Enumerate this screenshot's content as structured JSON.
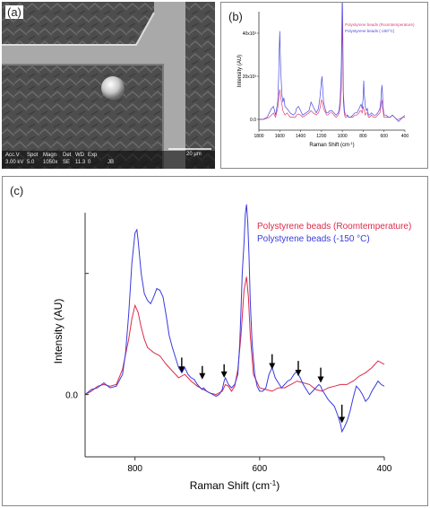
{
  "panel_a": {
    "label": "(a)",
    "sem": {
      "headers": [
        "Acc.V",
        "Spot",
        "Magn",
        "Det",
        "WD",
        "Exp"
      ],
      "values": [
        "3.00 kV",
        "5.0",
        "1050x",
        "SE",
        "11.3",
        "0"
      ],
      "scale_bar": "20 μm",
      "operator": "JB"
    }
  },
  "chart_data": [
    {
      "id": "b",
      "panel_label": "(b)",
      "type": "line",
      "xlabel_text": "Raman Shift (cm",
      "xlabel_sup": "-1",
      "xlabel_close": ")",
      "ylabel": "Intensity (AU)",
      "xlim": [
        1800,
        400
      ],
      "ylim": [
        -5,
        50
      ],
      "x_ticks": [
        1800,
        1600,
        1400,
        1200,
        1000,
        800,
        600,
        400
      ],
      "y_ticks": [
        "0.0",
        "20x10³",
        "40x10³"
      ],
      "legend": [
        "Polystyrene beads (Roomtemperature)",
        "Polystyrene beads (-150°C)"
      ],
      "legend_position": "top-right",
      "series": [
        {
          "name": "Polystyrene beads (Roomtemperature)",
          "color": "#e0407a",
          "x": [
            1800,
            1760,
            1720,
            1700,
            1680,
            1660,
            1640,
            1620,
            1605,
            1600,
            1590,
            1570,
            1550,
            1530,
            1500,
            1470,
            1450,
            1440,
            1420,
            1400,
            1380,
            1350,
            1320,
            1300,
            1280,
            1250,
            1230,
            1215,
            1200,
            1190,
            1180,
            1160,
            1150,
            1140,
            1120,
            1100,
            1080,
            1060,
            1040,
            1030,
            1020,
            1010,
            1003,
            1000,
            995,
            990,
            980,
            970,
            960,
            950,
            940,
            920,
            900,
            880,
            860,
            840,
            830,
            820,
            810,
            800,
            790,
            780,
            770,
            760,
            750,
            740,
            720,
            700,
            680,
            660,
            640,
            630,
            621,
            610,
            600,
            580,
            560,
            540,
            520,
            500,
            480,
            460,
            440,
            420,
            400
          ],
          "y": [
            0,
            0,
            0.5,
            1,
            2,
            3,
            1,
            5,
            12,
            14,
            10,
            4,
            2,
            3,
            1,
            1,
            1,
            2,
            2.5,
            2,
            1,
            2,
            3,
            4,
            3,
            2,
            3,
            5,
            9,
            8,
            5,
            3,
            2,
            2,
            3,
            3,
            2,
            1,
            2,
            3,
            6,
            14,
            40,
            48,
            30,
            8,
            2,
            1,
            1,
            2,
            1,
            1,
            1,
            2,
            2,
            3,
            4,
            4,
            3,
            6,
            4,
            2,
            3,
            3,
            1,
            1,
            2,
            1,
            1,
            2,
            3,
            6,
            9,
            4,
            1,
            1,
            1,
            1,
            2,
            1,
            0,
            0,
            0.5,
            1,
            2
          ]
        },
        {
          "name": "Polystyrene beads (-150°C)",
          "color": "#4a4ae0",
          "x": [
            1800,
            1760,
            1720,
            1700,
            1680,
            1660,
            1640,
            1620,
            1610,
            1605,
            1600,
            1595,
            1590,
            1580,
            1570,
            1560,
            1550,
            1530,
            1500,
            1470,
            1450,
            1440,
            1420,
            1400,
            1380,
            1350,
            1320,
            1300,
            1280,
            1250,
            1230,
            1215,
            1200,
            1195,
            1190,
            1180,
            1160,
            1150,
            1140,
            1120,
            1100,
            1080,
            1060,
            1040,
            1030,
            1020,
            1010,
            1003,
            1000,
            995,
            990,
            980,
            970,
            960,
            950,
            940,
            920,
            900,
            880,
            860,
            840,
            830,
            820,
            810,
            800,
            795,
            790,
            780,
            770,
            760,
            750,
            740,
            720,
            700,
            680,
            660,
            640,
            630,
            621,
            615,
            610,
            600,
            580,
            560,
            540,
            520,
            500,
            480,
            460,
            440,
            420,
            400
          ],
          "y": [
            0,
            0,
            1,
            3,
            5,
            6,
            2,
            8,
            20,
            32,
            41,
            30,
            22,
            12,
            8,
            10,
            6,
            5,
            3,
            2,
            3,
            5,
            6,
            4,
            2,
            3,
            4,
            8,
            6,
            3,
            5,
            10,
            18,
            20,
            16,
            8,
            4,
            3,
            3,
            4,
            4,
            3,
            2,
            3,
            5,
            10,
            25,
            50,
            60,
            40,
            12,
            4,
            2,
            2,
            2,
            1,
            1,
            2,
            3,
            3,
            5,
            6,
            7,
            5,
            10,
            18,
            12,
            6,
            4,
            5,
            2,
            2,
            3,
            2,
            2,
            3,
            5,
            9,
            16,
            12,
            6,
            2,
            2,
            1,
            1,
            2,
            1,
            0,
            -1,
            0,
            1,
            1
          ]
        }
      ]
    },
    {
      "id": "c",
      "panel_label": "(c)",
      "type": "line",
      "xlabel_text": "Raman Shift (cm",
      "xlabel_sup": "-1",
      "xlabel_close": ")",
      "ylabel": "Intensity (AU)",
      "xlim": [
        880,
        400
      ],
      "ylim": [
        -0.37,
        1.23
      ],
      "x_ticks": [
        800,
        600,
        400
      ],
      "y_zero_label": "0.0",
      "y_tick_values": [
        0,
        0.72
      ],
      "legend": [
        "Polystyrene beads (Roomtemperature)",
        "Polystyrene beads (-150 °C)"
      ],
      "legend_colors": [
        "#dd2a4a",
        "#3a3ae0"
      ],
      "legend_position": "top-right",
      "annotations": [
        {
          "type": "arrow",
          "x": 725,
          "y_from": 0.22,
          "y_to": 0.13
        },
        {
          "type": "arrow",
          "x": 692,
          "y_from": 0.17,
          "y_to": 0.09
        },
        {
          "type": "arrow",
          "x": 657,
          "y_from": 0.18,
          "y_to": 0.1
        },
        {
          "type": "arrow",
          "x": 580,
          "y_from": 0.24,
          "y_to": 0.15
        },
        {
          "type": "arrow",
          "x": 538,
          "y_from": 0.2,
          "y_to": 0.11
        },
        {
          "type": "arrow",
          "x": 502,
          "y_from": 0.16,
          "y_to": 0.07
        },
        {
          "type": "arrow",
          "x": 468,
          "y_from": -0.06,
          "y_to": -0.17
        }
      ],
      "series": [
        {
          "name": "Polystyrene beads (Roomtemperature)",
          "color": "#dd2a4a",
          "x": [
            880,
            870,
            860,
            850,
            840,
            830,
            820,
            810,
            805,
            800,
            795,
            790,
            785,
            780,
            770,
            760,
            750,
            740,
            730,
            720,
            710,
            700,
            690,
            680,
            670,
            660,
            655,
            650,
            645,
            640,
            635,
            630,
            625,
            621,
            618,
            615,
            610,
            600,
            590,
            580,
            570,
            560,
            550,
            540,
            530,
            520,
            510,
            500,
            490,
            480,
            470,
            460,
            450,
            440,
            430,
            420,
            410,
            400
          ],
          "y": [
            0.0,
            0.02,
            0.05,
            0.06,
            0.05,
            0.06,
            0.15,
            0.33,
            0.45,
            0.53,
            0.49,
            0.4,
            0.33,
            0.28,
            0.25,
            0.23,
            0.18,
            0.14,
            0.1,
            0.12,
            0.08,
            0.05,
            0.03,
            0.01,
            0.0,
            0.02,
            0.06,
            0.05,
            0.02,
            0.05,
            0.15,
            0.35,
            0.62,
            0.7,
            0.58,
            0.35,
            0.12,
            0.04,
            0.03,
            0.02,
            0.04,
            0.04,
            0.06,
            0.08,
            0.07,
            0.06,
            0.03,
            0.02,
            0.04,
            0.05,
            0.06,
            0.06,
            0.08,
            0.11,
            0.13,
            0.16,
            0.2,
            0.18
          ]
        },
        {
          "name": "Polystyrene beads (-150 °C)",
          "color": "#3a3ae0",
          "x": [
            880,
            870,
            860,
            850,
            840,
            830,
            820,
            815,
            810,
            805,
            800,
            797,
            795,
            790,
            785,
            780,
            775,
            770,
            765,
            760,
            755,
            750,
            745,
            740,
            735,
            730,
            725,
            720,
            715,
            710,
            705,
            700,
            695,
            692,
            690,
            685,
            680,
            675,
            670,
            665,
            660,
            657,
            655,
            650,
            645,
            640,
            635,
            632,
            630,
            628,
            625,
            623,
            621,
            619,
            617,
            615,
            612,
            608,
            604,
            600,
            595,
            590,
            585,
            580,
            575,
            570,
            565,
            560,
            555,
            550,
            545,
            540,
            538,
            535,
            530,
            525,
            520,
            515,
            510,
            505,
            502,
            500,
            495,
            490,
            485,
            480,
            475,
            470,
            468,
            465,
            460,
            455,
            450,
            445,
            440,
            435,
            430,
            425,
            420,
            415,
            410,
            405,
            400
          ],
          "y": [
            0.0,
            0.03,
            0.04,
            0.07,
            0.04,
            0.05,
            0.12,
            0.25,
            0.48,
            0.78,
            0.96,
            0.98,
            0.92,
            0.72,
            0.6,
            0.56,
            0.54,
            0.58,
            0.63,
            0.62,
            0.58,
            0.47,
            0.35,
            0.28,
            0.22,
            0.16,
            0.13,
            0.16,
            0.12,
            0.1,
            0.09,
            0.06,
            0.04,
            0.03,
            0.04,
            0.02,
            0.01,
            0.0,
            -0.01,
            0.0,
            0.03,
            0.08,
            0.1,
            0.06,
            0.04,
            0.06,
            0.12,
            0.3,
            0.5,
            0.72,
            0.9,
            1.07,
            1.13,
            1.02,
            0.82,
            0.55,
            0.3,
            0.12,
            0.05,
            0.02,
            0.02,
            0.04,
            0.12,
            0.16,
            0.1,
            0.07,
            0.04,
            0.06,
            0.08,
            0.09,
            0.12,
            0.14,
            0.12,
            0.1,
            0.06,
            0.03,
            0.0,
            0.02,
            0.04,
            0.06,
            0.05,
            0.03,
            0.0,
            -0.03,
            -0.05,
            -0.07,
            -0.12,
            -0.18,
            -0.22,
            -0.2,
            -0.16,
            -0.1,
            -0.02,
            0.05,
            0.03,
            0.0,
            -0.04,
            -0.02,
            0.02,
            0.05,
            0.08,
            0.06,
            0.05
          ]
        }
      ]
    }
  ]
}
